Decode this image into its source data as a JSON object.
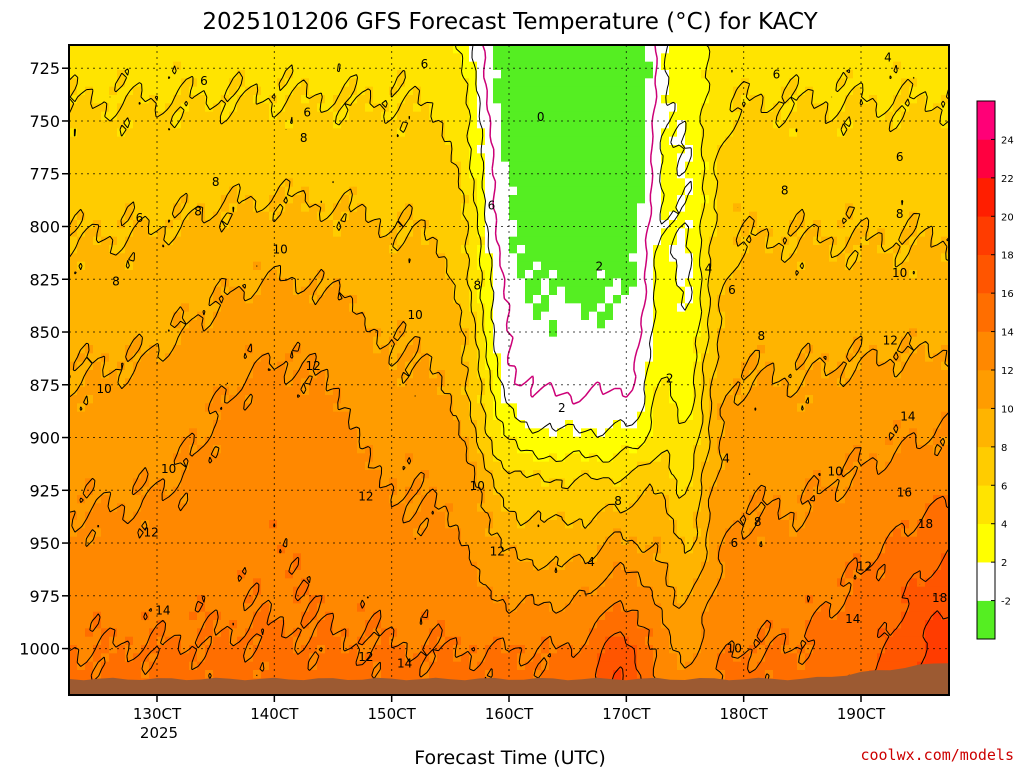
{
  "chart_data": {
    "type": "heatmap",
    "title": "2025101206 GFS Forecast Temperature (°C) for KACY",
    "xlabel": "Forecast Time (UTC)",
    "ylabel": "",
    "credit": "coolwx.com/models",
    "x_unit": "days since 12OCT2025 06Z",
    "x_range": [
      0,
      7.5
    ],
    "y_range": [
      1022,
      714
    ],
    "y_ticks": [
      725,
      750,
      775,
      800,
      825,
      850,
      875,
      900,
      925,
      950,
      975,
      1000
    ],
    "x_ticks": [
      {
        "x": 0.75,
        "label": "130CT"
      },
      {
        "x": 1.75,
        "label": "140CT"
      },
      {
        "x": 2.75,
        "label": "150CT"
      },
      {
        "x": 3.75,
        "label": "160CT"
      },
      {
        "x": 4.75,
        "label": "170CT"
      },
      {
        "x": 5.75,
        "label": "180CT"
      },
      {
        "x": 6.75,
        "label": "190CT"
      }
    ],
    "year_label": "2025",
    "grid": true,
    "colorbar": {
      "levels": [
        -4,
        -2,
        2,
        4,
        6,
        8,
        10,
        12,
        14,
        16,
        18,
        20,
        22,
        24,
        26
      ],
      "colors": [
        "#55ee22",
        "#ffffff",
        "#ffff00",
        "#ffe400",
        "#ffcc00",
        "#ffb400",
        "#ff9c00",
        "#ff8800",
        "#ff6e00",
        "#ff5500",
        "#ff3c00",
        "#ff1e00",
        "#ff0040",
        "#ff0077"
      ],
      "labels": [
        "-2",
        "2",
        "4",
        "6",
        "8",
        "10",
        "12",
        "14",
        "16",
        "18",
        "20",
        "22",
        "24"
      ]
    },
    "contour_labels": [
      {
        "x": 1.15,
        "y": 731,
        "text": "6"
      },
      {
        "x": 2.03,
        "y": 746,
        "text": "6"
      },
      {
        "x": 3.03,
        "y": 723,
        "text": "6"
      },
      {
        "x": 2.0,
        "y": 758,
        "text": "8"
      },
      {
        "x": 0.6,
        "y": 796,
        "text": "6"
      },
      {
        "x": 1.25,
        "y": 779,
        "text": "8"
      },
      {
        "x": 1.1,
        "y": 793,
        "text": "8"
      },
      {
        "x": 1.8,
        "y": 811,
        "text": "10"
      },
      {
        "x": 0.4,
        "y": 826,
        "text": "8"
      },
      {
        "x": 2.95,
        "y": 842,
        "text": "10"
      },
      {
        "x": 2.08,
        "y": 866,
        "text": "12"
      },
      {
        "x": 0.3,
        "y": 877,
        "text": "10"
      },
      {
        "x": 0.85,
        "y": 915,
        "text": "10"
      },
      {
        "x": 2.53,
        "y": 928,
        "text": "12"
      },
      {
        "x": 0.7,
        "y": 945,
        "text": "12"
      },
      {
        "x": 0.8,
        "y": 982,
        "text": "14"
      },
      {
        "x": 2.53,
        "y": 1004,
        "text": "12"
      },
      {
        "x": 2.86,
        "y": 1007,
        "text": "14"
      },
      {
        "x": 3.6,
        "y": 790,
        "text": "6"
      },
      {
        "x": 3.48,
        "y": 828,
        "text": "8"
      },
      {
        "x": 3.48,
        "y": 923,
        "text": "10"
      },
      {
        "x": 3.65,
        "y": 954,
        "text": "12"
      },
      {
        "x": 4.02,
        "y": 748,
        "text": "0"
      },
      {
        "x": 4.52,
        "y": 819,
        "text": "2"
      },
      {
        "x": 4.2,
        "y": 886,
        "text": "2"
      },
      {
        "x": 5.12,
        "y": 872,
        "text": "2"
      },
      {
        "x": 5.45,
        "y": 820,
        "text": "4"
      },
      {
        "x": 4.45,
        "y": 959,
        "text": "4"
      },
      {
        "x": 4.68,
        "y": 930,
        "text": "8"
      },
      {
        "x": 5.65,
        "y": 830,
        "text": "6"
      },
      {
        "x": 5.9,
        "y": 852,
        "text": "8"
      },
      {
        "x": 5.6,
        "y": 910,
        "text": "4"
      },
      {
        "x": 5.87,
        "y": 940,
        "text": "8"
      },
      {
        "x": 5.67,
        "y": 950,
        "text": "6"
      },
      {
        "x": 5.67,
        "y": 1000,
        "text": "10"
      },
      {
        "x": 6.1,
        "y": 783,
        "text": "8"
      },
      {
        "x": 6.03,
        "y": 728,
        "text": "6"
      },
      {
        "x": 6.98,
        "y": 720,
        "text": "4"
      },
      {
        "x": 7.08,
        "y": 767,
        "text": "6"
      },
      {
        "x": 7.08,
        "y": 794,
        "text": "8"
      },
      {
        "x": 7.08,
        "y": 822,
        "text": "10"
      },
      {
        "x": 7.0,
        "y": 854,
        "text": "12"
      },
      {
        "x": 7.15,
        "y": 890,
        "text": "14"
      },
      {
        "x": 6.53,
        "y": 916,
        "text": "10"
      },
      {
        "x": 7.12,
        "y": 926,
        "text": "16"
      },
      {
        "x": 7.3,
        "y": 941,
        "text": "18"
      },
      {
        "x": 6.78,
        "y": 961,
        "text": "12"
      },
      {
        "x": 6.68,
        "y": 986,
        "text": "14"
      },
      {
        "x": 7.42,
        "y": 976,
        "text": "18"
      }
    ]
  }
}
